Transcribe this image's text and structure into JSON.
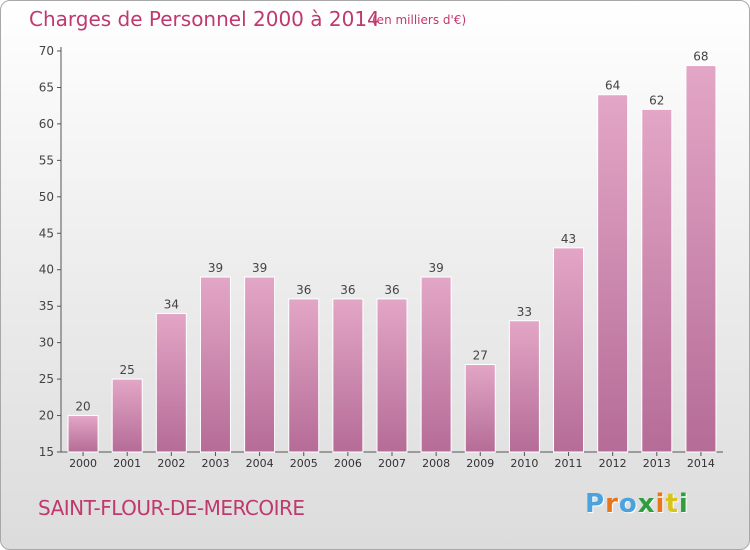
{
  "title": "Charges de Personnel 2000 à 2014",
  "subtitle": "(en milliers d'€)",
  "commune": "SAINT-FLOUR-DE-MERCOIRE",
  "logo": {
    "letters": [
      "P",
      "r",
      "o",
      "x",
      "i",
      "t",
      "i"
    ],
    "colors": [
      "#4aa3df",
      "#e8741c",
      "#4aa3df",
      "#2e9e3e",
      "#e8741c",
      "#d9c21a",
      "#2e9e3e"
    ]
  },
  "colors": {
    "bar_top": "#e3a6c6",
    "bar_bottom": "#b56c97",
    "accent": "#c0396e"
  },
  "chart_data": {
    "type": "bar",
    "title": "Charges de Personnel 2000 à 2014",
    "subtitle": "(en milliers d'€)",
    "categories": [
      "2000",
      "2001",
      "2002",
      "2003",
      "2004",
      "2005",
      "2006",
      "2007",
      "2008",
      "2009",
      "2010",
      "2011",
      "2012",
      "2013",
      "2014"
    ],
    "values": [
      20,
      25,
      34,
      39,
      39,
      36,
      36,
      36,
      39,
      27,
      33,
      43,
      64,
      62,
      68
    ],
    "ylim": [
      15,
      70
    ],
    "yticks": [
      15,
      20,
      25,
      30,
      35,
      40,
      45,
      50,
      55,
      60,
      65,
      70
    ],
    "grid": false,
    "data_labels": true
  }
}
